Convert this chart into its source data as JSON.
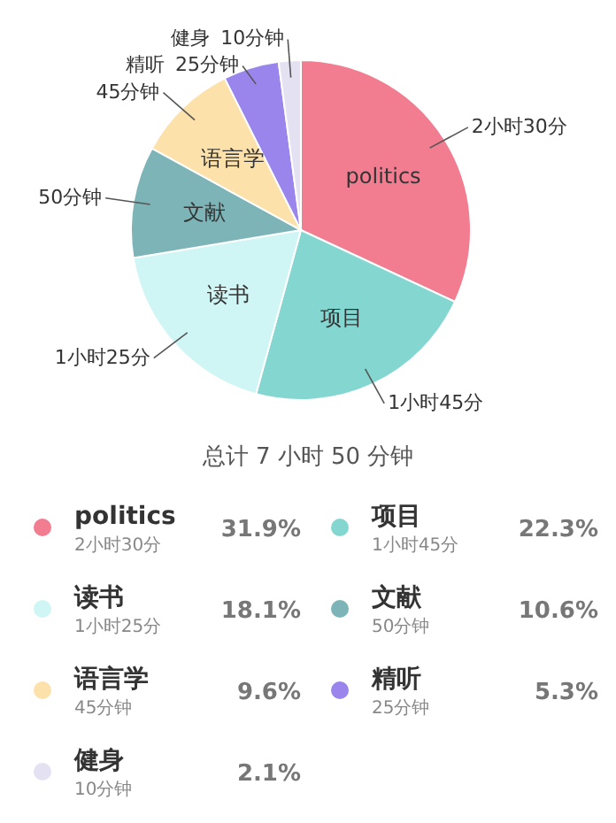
{
  "chart_data": {
    "type": "pie",
    "title": "总计 7 小时 50 分钟",
    "categories": [
      "politics",
      "项目",
      "读书",
      "文献",
      "语言学",
      "精听",
      "健身"
    ],
    "values": [
      31.9,
      22.3,
      18.1,
      10.6,
      9.6,
      5.3,
      2.1
    ],
    "colors": [
      "#f27d90",
      "#84d6d1",
      "#cff6f4",
      "#7db4b7",
      "#fde1aa",
      "#9a85ec",
      "#e4e1f3"
    ],
    "value_labels": [
      "31.9%",
      "22.3%",
      "18.1%",
      "10.6%",
      "9.6%",
      "5.3%",
      "2.1%"
    ],
    "annotations": [
      {
        "text": "2小时30分",
        "x": "politics"
      },
      {
        "text": "1小时45分",
        "x": "项目"
      },
      {
        "text": "1小时25分",
        "x": "读书"
      },
      {
        "text": "50分钟",
        "x": "文献"
      },
      {
        "text": "45分钟",
        "x": "语言学"
      },
      {
        "text": "25分钟",
        "x": "精听"
      },
      {
        "text": "10分钟",
        "x": "健身"
      }
    ],
    "legend": "bottom"
  }
}
